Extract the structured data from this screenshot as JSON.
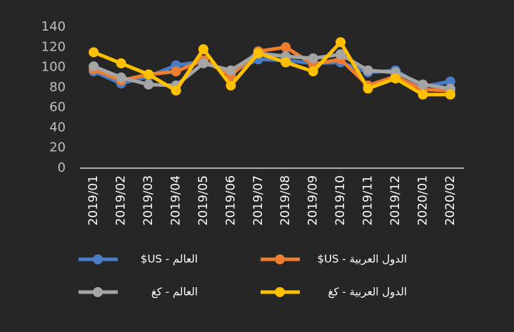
{
  "chart_data": {
    "type": "line",
    "categories": [
      "2019/01",
      "2019/02",
      "2019/03",
      "2019/04",
      "2019/05",
      "2019/06",
      "2019/07",
      "2019/08",
      "2019/09",
      "2019/10",
      "2019/11",
      "2019/12",
      "2020/01",
      "2020/02"
    ],
    "series": [
      {
        "name": "العالم - US$",
        "color": "#4a7cc4",
        "values": [
          96,
          84,
          91,
          102,
          106,
          95,
          108,
          107,
          104,
          105,
          95,
          97,
          81,
          86
        ]
      },
      {
        "name": "الدول العربية - US$",
        "color": "#ed7d31",
        "values": [
          98,
          87,
          93,
          96,
          107,
          92,
          116,
          120,
          103,
          108,
          82,
          91,
          78,
          77
        ]
      },
      {
        "name": "العالم - كغ",
        "color": "#a5a5a5",
        "values": [
          101,
          90,
          83,
          82,
          104,
          97,
          114,
          111,
          109,
          113,
          97,
          95,
          83,
          79
        ]
      },
      {
        "name": "الدول العربية - كغ",
        "color": "#ffc000",
        "values": [
          115,
          104,
          93,
          77,
          118,
          82,
          114,
          105,
          96,
          125,
          79,
          89,
          73,
          73
        ]
      }
    ],
    "ylim": [
      0,
      140
    ],
    "yticks": [
      0,
      20,
      40,
      60,
      80,
      100,
      120,
      140
    ],
    "grid": false
  }
}
